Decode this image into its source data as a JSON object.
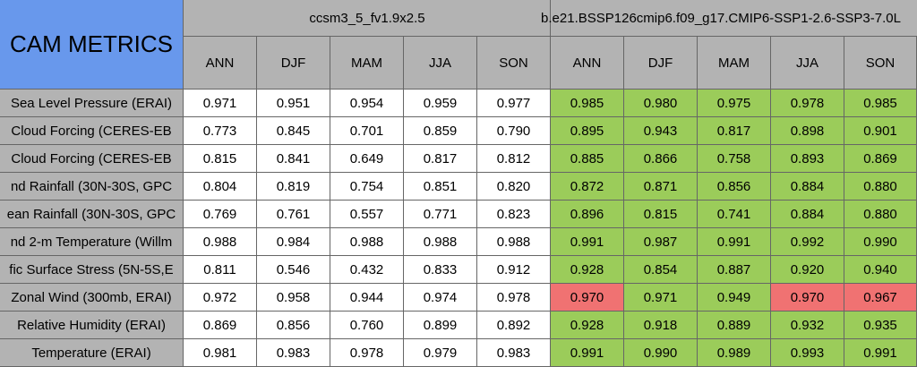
{
  "header": {
    "title": "CAM METRICS",
    "groups": [
      "ccsm3_5_fv1.9x2.5",
      "b.e21.BSSP126cmip6.f09_g17.CMIP6-SSP1-2.6-SSP3-7.0L"
    ],
    "seasons": [
      "ANN",
      "DJF",
      "MAM",
      "JJA",
      "SON",
      "ANN",
      "DJF",
      "MAM",
      "JJA",
      "SON"
    ]
  },
  "table": {
    "rows": [
      {
        "label": "Sea Level Pressure (ERAI)",
        "cells": [
          "0.971",
          "0.951",
          "0.954",
          "0.959",
          "0.977",
          "0.985",
          "0.980",
          "0.975",
          "0.978",
          "0.985"
        ],
        "fills": [
          "#ffffff",
          "#ffffff",
          "#ffffff",
          "#ffffff",
          "#ffffff",
          "#9bcc5a",
          "#9bcc5a",
          "#9bcc5a",
          "#9bcc5a",
          "#9bcc5a"
        ]
      },
      {
        "label": "Cloud Forcing (CERES-EB",
        "cells": [
          "0.773",
          "0.845",
          "0.701",
          "0.859",
          "0.790",
          "0.895",
          "0.943",
          "0.817",
          "0.898",
          "0.901"
        ],
        "fills": [
          "#ffffff",
          "#ffffff",
          "#ffffff",
          "#ffffff",
          "#ffffff",
          "#9bcc5a",
          "#9bcc5a",
          "#9bcc5a",
          "#9bcc5a",
          "#9bcc5a"
        ]
      },
      {
        "label": "Cloud Forcing (CERES-EB",
        "cells": [
          "0.815",
          "0.841",
          "0.649",
          "0.817",
          "0.812",
          "0.885",
          "0.866",
          "0.758",
          "0.893",
          "0.869"
        ],
        "fills": [
          "#ffffff",
          "#ffffff",
          "#ffffff",
          "#ffffff",
          "#ffffff",
          "#9bcc5a",
          "#9bcc5a",
          "#9bcc5a",
          "#9bcc5a",
          "#9bcc5a"
        ]
      },
      {
        "label": "nd Rainfall (30N-30S, GPC",
        "cells": [
          "0.804",
          "0.819",
          "0.754",
          "0.851",
          "0.820",
          "0.872",
          "0.871",
          "0.856",
          "0.884",
          "0.880"
        ],
        "fills": [
          "#ffffff",
          "#ffffff",
          "#ffffff",
          "#ffffff",
          "#ffffff",
          "#9bcc5a",
          "#9bcc5a",
          "#9bcc5a",
          "#9bcc5a",
          "#9bcc5a"
        ]
      },
      {
        "label": "ean Rainfall (30N-30S, GPC",
        "cells": [
          "0.769",
          "0.761",
          "0.557",
          "0.771",
          "0.823",
          "0.896",
          "0.815",
          "0.741",
          "0.884",
          "0.880"
        ],
        "fills": [
          "#ffffff",
          "#ffffff",
          "#ffffff",
          "#ffffff",
          "#ffffff",
          "#9bcc5a",
          "#9bcc5a",
          "#9bcc5a",
          "#9bcc5a",
          "#9bcc5a"
        ]
      },
      {
        "label": "nd 2-m Temperature (Willm",
        "cells": [
          "0.988",
          "0.984",
          "0.988",
          "0.988",
          "0.988",
          "0.991",
          "0.987",
          "0.991",
          "0.992",
          "0.990"
        ],
        "fills": [
          "#ffffff",
          "#ffffff",
          "#ffffff",
          "#ffffff",
          "#ffffff",
          "#9bcc5a",
          "#9bcc5a",
          "#9bcc5a",
          "#9bcc5a",
          "#9bcc5a"
        ]
      },
      {
        "label": "fic Surface Stress (5N-5S,E",
        "cells": [
          "0.811",
          "0.546",
          "0.432",
          "0.833",
          "0.912",
          "0.928",
          "0.854",
          "0.887",
          "0.920",
          "0.940"
        ],
        "fills": [
          "#ffffff",
          "#ffffff",
          "#ffffff",
          "#ffffff",
          "#ffffff",
          "#9bcc5a",
          "#9bcc5a",
          "#9bcc5a",
          "#9bcc5a",
          "#9bcc5a"
        ]
      },
      {
        "label": "Zonal Wind (300mb, ERAI)",
        "cells": [
          "0.972",
          "0.958",
          "0.944",
          "0.974",
          "0.978",
          "0.970",
          "0.971",
          "0.949",
          "0.970",
          "0.967"
        ],
        "fills": [
          "#ffffff",
          "#ffffff",
          "#ffffff",
          "#ffffff",
          "#ffffff",
          "#f07272",
          "#9bcc5a",
          "#9bcc5a",
          "#f07272",
          "#f07272"
        ]
      },
      {
        "label": "Relative Humidity (ERAI)",
        "cells": [
          "0.869",
          "0.856",
          "0.760",
          "0.899",
          "0.892",
          "0.928",
          "0.918",
          "0.889",
          "0.932",
          "0.935"
        ],
        "fills": [
          "#ffffff",
          "#ffffff",
          "#ffffff",
          "#ffffff",
          "#ffffff",
          "#9bcc5a",
          "#9bcc5a",
          "#9bcc5a",
          "#9bcc5a",
          "#9bcc5a"
        ]
      },
      {
        "label": "Temperature (ERAI)",
        "cells": [
          "0.981",
          "0.983",
          "0.978",
          "0.979",
          "0.983",
          "0.991",
          "0.990",
          "0.989",
          "0.993",
          "0.991"
        ],
        "fills": [
          "#ffffff",
          "#ffffff",
          "#ffffff",
          "#ffffff",
          "#ffffff",
          "#9bcc5a",
          "#9bcc5a",
          "#9bcc5a",
          "#9bcc5a",
          "#9bcc5a"
        ]
      }
    ]
  }
}
